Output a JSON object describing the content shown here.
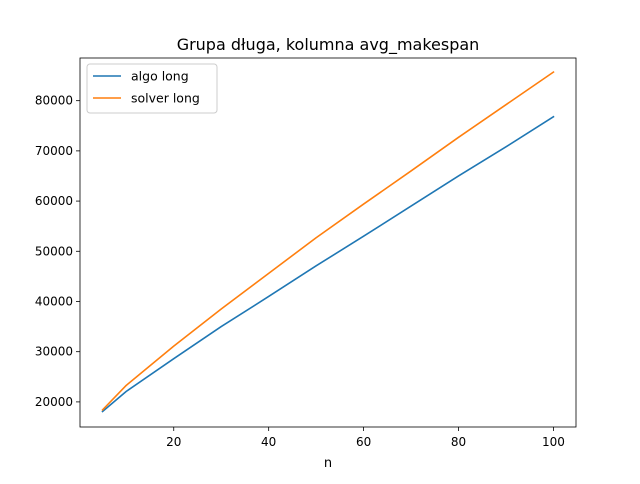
{
  "chart_data": {
    "type": "line",
    "title": "Grupa długa, kolumna avg_makespan",
    "xlabel": "n",
    "ylabel": "",
    "xlim": [
      0.25,
      104.75
    ],
    "ylim": [
      15000,
      88500
    ],
    "x_ticks": [
      20,
      40,
      60,
      80,
      100
    ],
    "y_ticks": [
      20000,
      30000,
      40000,
      50000,
      60000,
      70000,
      80000
    ],
    "grid": false,
    "legend_position": "top-left",
    "series": [
      {
        "name": "algo long",
        "color": "#1f77b4",
        "x": [
          5,
          10,
          20,
          30,
          40,
          50,
          60,
          70,
          80,
          90,
          100
        ],
        "y": [
          18100,
          22100,
          28600,
          35000,
          41000,
          47100,
          53000,
          59000,
          65000,
          70800,
          76800
        ]
      },
      {
        "name": "solver long",
        "color": "#ff7f0e",
        "x": [
          5,
          10,
          20,
          30,
          40,
          50,
          60,
          70,
          80,
          90,
          100
        ],
        "y": [
          18400,
          23300,
          31100,
          38500,
          45600,
          52700,
          59400,
          66000,
          72700,
          79200,
          85700
        ]
      }
    ]
  }
}
